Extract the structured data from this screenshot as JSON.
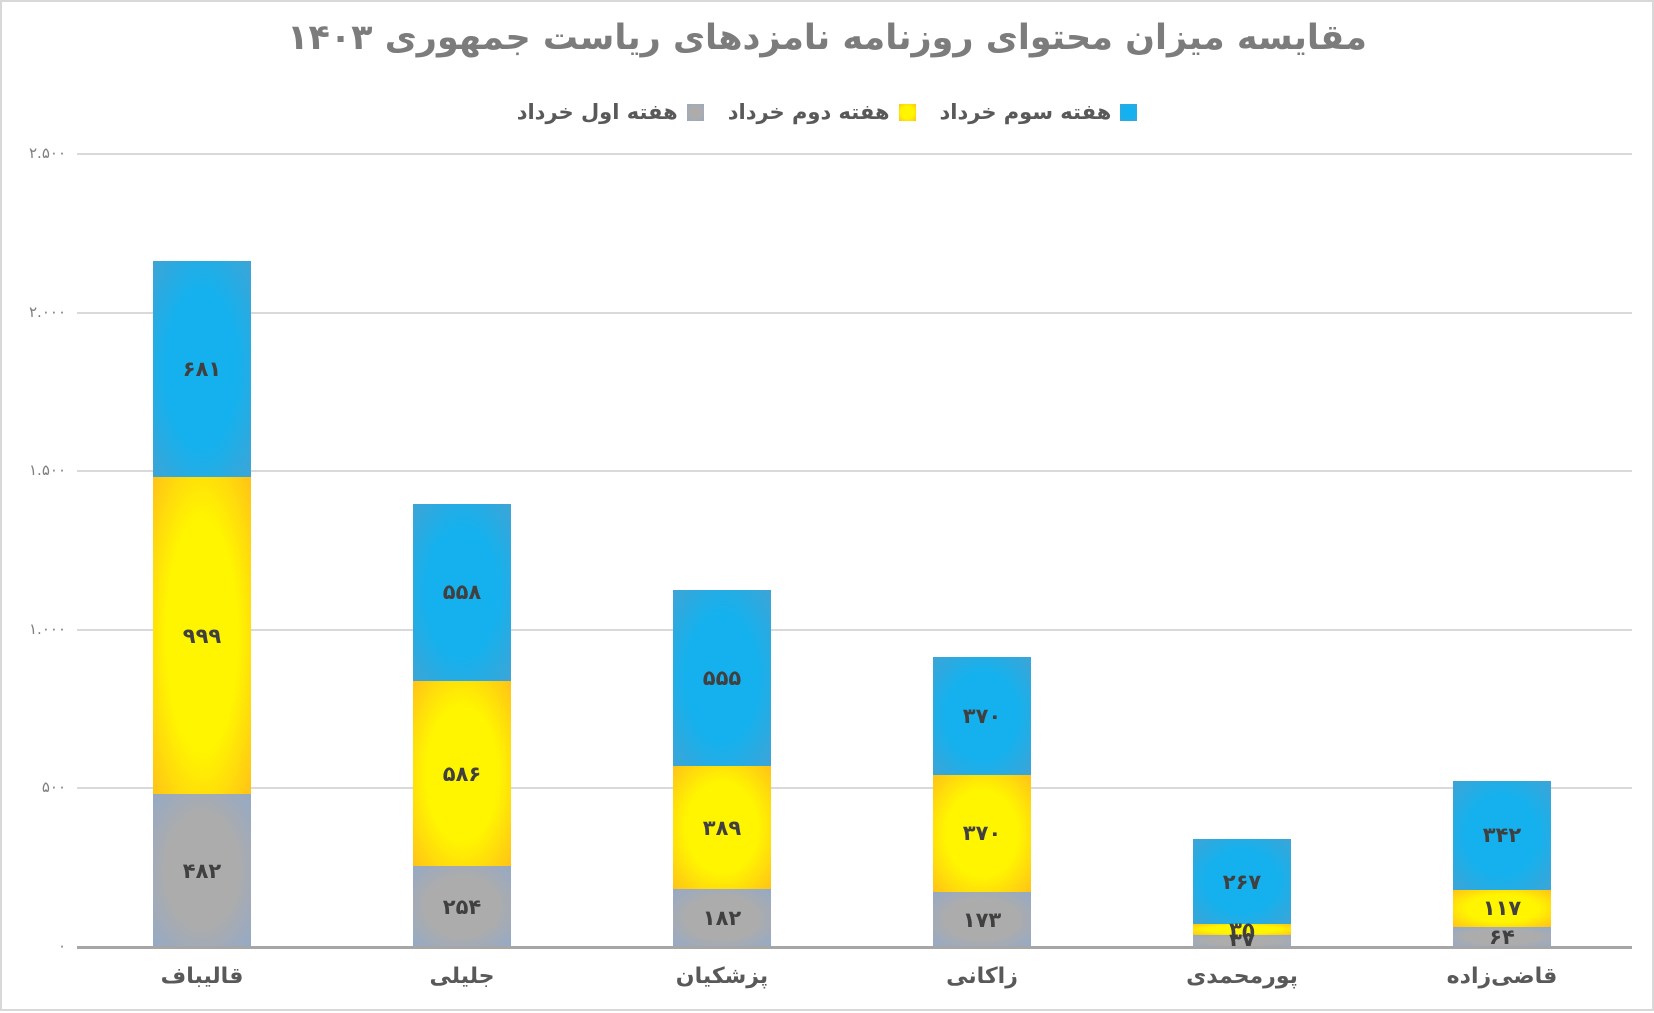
{
  "title": "مقایسه میزان محتوای روزنامه نامزدهای ریاست  جمهوری ۱۴۰۳",
  "legend": [
    {
      "label": "هفته اول خرداد",
      "color_key": "gray"
    },
    {
      "label": "هفته دوم خرداد",
      "color_key": "yellow"
    },
    {
      "label": "هفته سوم خرداد",
      "color_key": "blue"
    }
  ],
  "colors": {
    "gray": {
      "center": "#ACACAC",
      "edge": "#94A9C6"
    },
    "yellow": {
      "center": "#FFF500",
      "edge": "#FFC217"
    },
    "blue": {
      "center": "#15B1EE",
      "edge": "#3EA4D5"
    },
    "gridline": "#D9D9D9",
    "axis_line": "#A6A6A6",
    "title_text": "#7C7C7C",
    "label_text": "#404040",
    "category_text": "#595959"
  },
  "chart_data": {
    "type": "bar",
    "stacked": true,
    "grid": true,
    "legend_position": "top",
    "categories": [
      "قالیباف",
      "جلیلی",
      "پزشکیان",
      "زاکانی",
      "پورمحمدی",
      "قاضی‌زاده"
    ],
    "series": [
      {
        "name": "هفته اول خرداد",
        "color_key": "gray",
        "values": [
          482,
          254,
          182,
          173,
          37,
          64
        ],
        "labels": [
          "۴۸۲",
          "۲۵۴",
          "۱۸۲",
          "۱۷۳",
          "۳۷",
          "۶۴"
        ]
      },
      {
        "name": "هفته دوم خرداد",
        "color_key": "yellow",
        "values": [
          999,
          586,
          389,
          370,
          35,
          117
        ],
        "labels": [
          "۹۹۹",
          "۵۸۶",
          "۳۸۹",
          "۳۷۰",
          "۳۵",
          "۱۱۷"
        ]
      },
      {
        "name": "هفته سوم خرداد",
        "color_key": "blue",
        "values": [
          681,
          558,
          555,
          370,
          267,
          342
        ],
        "labels": [
          "۶۸۱",
          "۵۵۸",
          "۵۵۵",
          "۳۷۰",
          "۲۶۷",
          "۳۴۲"
        ]
      }
    ],
    "totals": [
      2162,
      1398,
      1126,
      913,
      339,
      523
    ],
    "y_axis": {
      "min": 0,
      "max": 2500,
      "ticks": [
        {
          "value": 2500,
          "label": "۲.۵۰۰"
        },
        {
          "value": 2000,
          "label": "۲.۰۰۰"
        },
        {
          "value": 1500,
          "label": "۱.۵۰۰"
        },
        {
          "value": 1000,
          "label": "۱.۰۰۰"
        },
        {
          "value": 500,
          "label": "۵۰۰"
        },
        {
          "value": 0,
          "label": "۰"
        }
      ]
    }
  }
}
